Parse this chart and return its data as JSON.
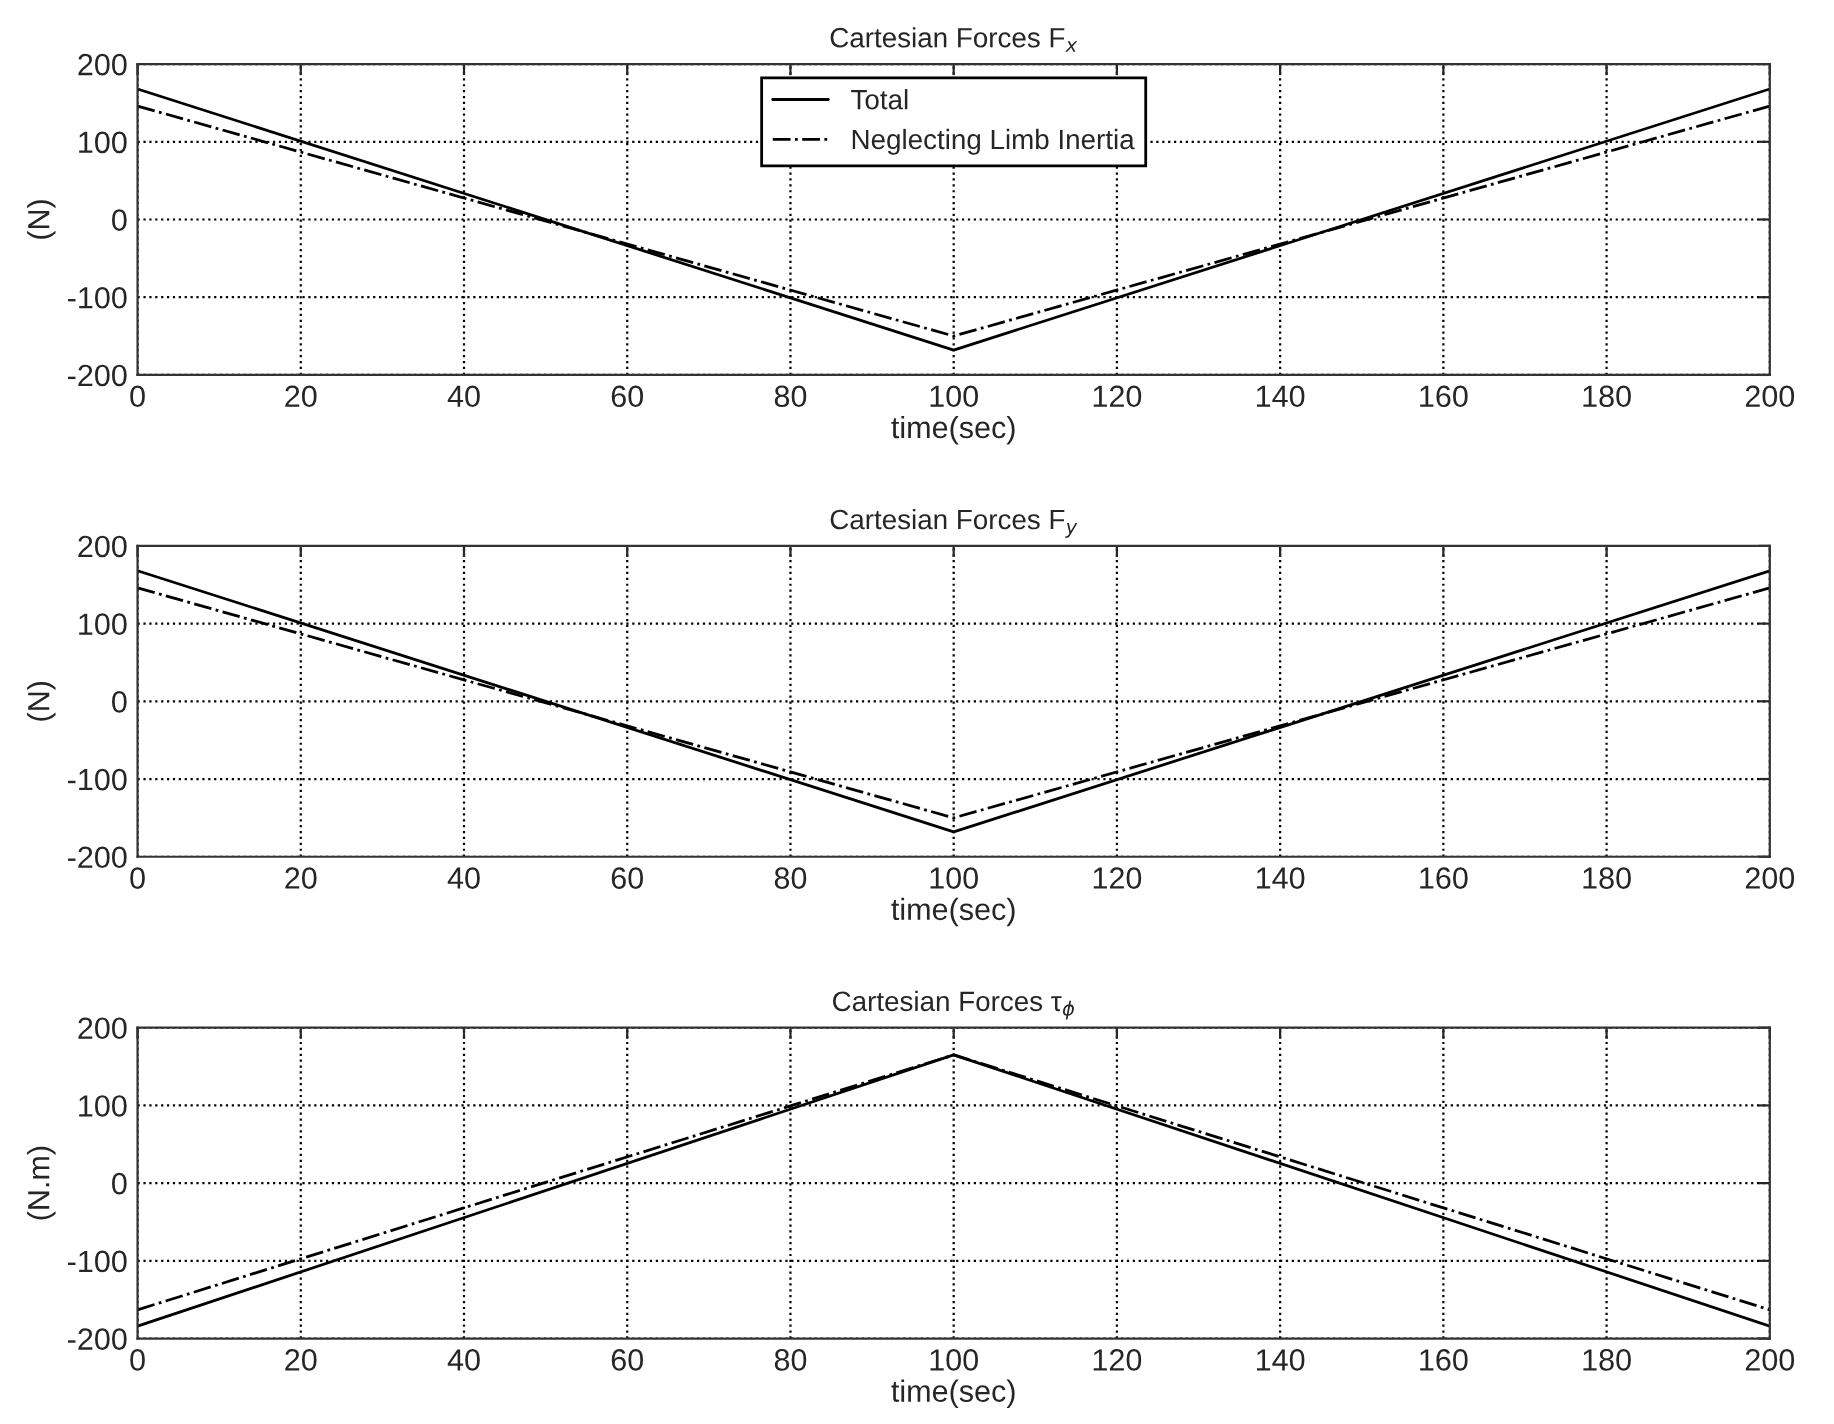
{
  "chart_data": [
    {
      "type": "line",
      "title": "Cartesian Forces F$_{x}$",
      "xlabel": "time(sec)",
      "ylabel": "(N)",
      "x": [
        0,
        100,
        200
      ],
      "xlim": [
        0,
        200
      ],
      "xticks": [
        0,
        20,
        40,
        60,
        80,
        100,
        120,
        140,
        160,
        180,
        200
      ],
      "ylim": [
        -200,
        200
      ],
      "yticks": [
        -200,
        -100,
        0,
        100,
        200
      ],
      "grid": true,
      "legend": "top",
      "series": [
        {
          "name": "Total",
          "color": "#000000",
          "line_style": "solid",
          "values": [
            168,
            -168,
            168
          ]
        },
        {
          "name": "Neglecting Limb Inertia",
          "color": "#000000",
          "line_style": "dashdot",
          "values": [
            146,
            -150,
            146
          ]
        }
      ]
    },
    {
      "type": "line",
      "title": "Cartesian Forces F$_{y}$",
      "xlabel": "time(sec)",
      "ylabel": "(N)",
      "x": [
        0,
        100,
        200
      ],
      "xlim": [
        0,
        200
      ],
      "xticks": [
        0,
        20,
        40,
        60,
        80,
        100,
        120,
        140,
        160,
        180,
        200
      ],
      "ylim": [
        -200,
        200
      ],
      "yticks": [
        -200,
        -100,
        0,
        100,
        200
      ],
      "grid": true,
      "series": [
        {
          "color": "#000000",
          "line_style": "solid",
          "values": [
            168,
            -168,
            168
          ]
        },
        {
          "color": "#000000",
          "line_style": "dashdot",
          "values": [
            146,
            -150,
            146
          ]
        }
      ]
    },
    {
      "type": "line",
      "title": "Cartesian Forces τ$_{ϕ}$",
      "xlabel": "time(sec)",
      "ylabel": "(N.m)",
      "x": [
        0,
        100,
        200
      ],
      "xlim": [
        0,
        200
      ],
      "xticks": [
        0,
        20,
        40,
        60,
        80,
        100,
        120,
        140,
        160,
        180,
        200
      ],
      "ylim": [
        -200,
        200
      ],
      "yticks": [
        -200,
        -100,
        0,
        100,
        200
      ],
      "grid": true,
      "series": [
        {
          "color": "#000000",
          "line_style": "solid",
          "values": [
            -184,
            165,
            -184
          ]
        },
        {
          "color": "#000000",
          "line_style": "dashdot",
          "values": [
            -163,
            165,
            -163
          ]
        }
      ]
    }
  ]
}
